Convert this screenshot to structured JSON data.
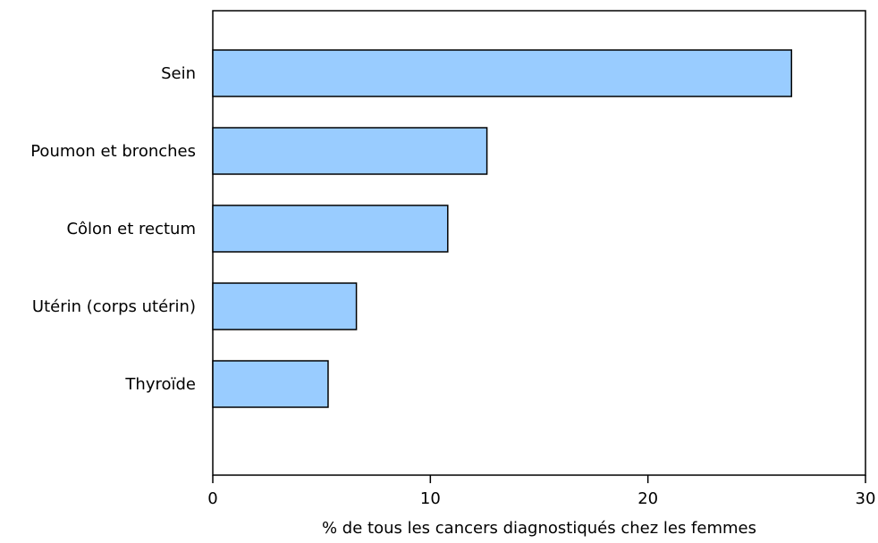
{
  "chart_data": {
    "type": "bar",
    "orientation": "horizontal",
    "categories": [
      "Sein",
      "Poumon et bronches",
      "Côlon et rectum",
      "Utérin (corps utérin)",
      "Thyroïde"
    ],
    "values": [
      26.6,
      12.6,
      10.8,
      6.6,
      5.3
    ],
    "xlabel": "% de tous les cancers diagnostiqués chez les femmes",
    "xlim": [
      0,
      30
    ],
    "xticks": [
      0,
      10,
      20,
      30
    ],
    "grid": false,
    "legend": "none",
    "bar_color": "#99ccff",
    "bar_border_color": "#000000"
  }
}
